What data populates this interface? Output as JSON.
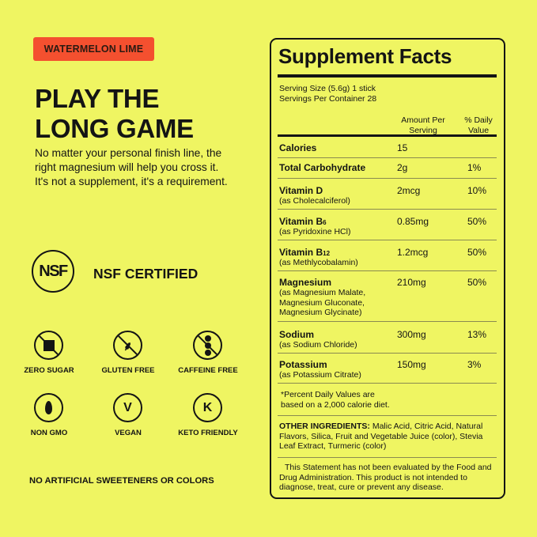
{
  "flavor_badge": "WATERMELON LIME",
  "headline": [
    "PLAY THE",
    "LONG GAME"
  ],
  "description": "No matter your personal finish line, the right magnesium will help you cross it. It's not a supplement, it's a requirement.",
  "nsf": {
    "logo": "NSF",
    "label": "NSF CERTIFIED"
  },
  "badges": [
    {
      "icon": "no-sugar-icon",
      "label": "ZERO SUGAR"
    },
    {
      "icon": "no-gluten-icon",
      "label": "GLUTEN FREE"
    },
    {
      "icon": "no-caffeine-icon",
      "label": "CAFFEINE FREE"
    },
    {
      "icon": "leaf-icon",
      "label": "NON GMO",
      "glyph": ""
    },
    {
      "icon": "vegan-icon",
      "label": "VEGAN",
      "glyph": "V"
    },
    {
      "icon": "keto-icon",
      "label": "KETO FRIENDLY",
      "glyph": "K"
    }
  ],
  "footer_note": "NO ARTIFICIAL SWEETENERS OR COLORS",
  "facts": {
    "title": "Supplement Facts",
    "serving_size": "Serving Size (5.6g) 1 stick",
    "servings_per_container": "Servings Per Container 28",
    "col_amount": [
      "Amount Per",
      "Serving"
    ],
    "col_dv": [
      "% Daily",
      "Value"
    ],
    "rows": [
      {
        "name": "Calories",
        "amount": "15",
        "dv": ""
      },
      {
        "name": "Total Carbohydrate",
        "amount": "2g",
        "dv": "1%"
      },
      {
        "name": "Vitamin D",
        "source": "(as Cholecalciferol)",
        "amount": "2mcg",
        "dv": "10%"
      },
      {
        "name": "Vitamin B",
        "sub": "6",
        "source": "(as Pyridoxine HCl)",
        "amount": "0.85mg",
        "dv": "50%"
      },
      {
        "name": "Vitamin B",
        "sub": "12",
        "source": "(as Methlycobalamin)",
        "amount": "1.2mcg",
        "dv": "50%"
      },
      {
        "name": "Magnesium",
        "source": [
          "(as Magnesium Malate,",
          "Magnesium Gluconate,",
          "Magnesium Glycinate)"
        ],
        "amount": "210mg",
        "dv": "50%"
      },
      {
        "name": "Sodium",
        "source": "(as Sodium Chloride)",
        "amount": "300mg",
        "dv": "13%"
      },
      {
        "name": "Potassium",
        "source": "(as Potassium Citrate)",
        "amount": "150mg",
        "dv": "3%"
      }
    ],
    "footnote": [
      "*Percent Daily Values are",
      "based on a 2,000 calorie diet."
    ],
    "other_label": "OTHER INGREDIENTS:",
    "other_text": "Malic Acid, Citric Acid, Natural Flavors, Silica, Fruit and Vegetable Juice (color), Stevia Leaf Extract, Turmeric (color)",
    "disclaimer": "This Statement has not been evaluated by the Food and Drug Administration. This product is not intended to diagnose, treat, cure or prevent any disease."
  }
}
